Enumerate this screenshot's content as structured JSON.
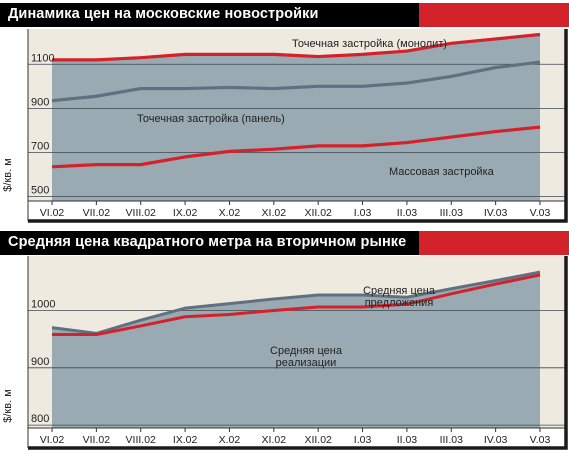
{
  "colors": {
    "header_bg": "#000000",
    "header_accent": "#d3222a",
    "plot_bg": "#efeadf",
    "area_fill": "#9aaab3",
    "gray_line": "#5f7180",
    "red_line": "#d3222a"
  },
  "charts": [
    {
      "title": "Динамика цен на московские новостройки",
      "ylabel": "$/кв. м",
      "xlabels": [
        "VI.02",
        "VII.02",
        "VIII.02",
        "IX.02",
        "X.02",
        "XI.02",
        "XII.02",
        "I.03",
        "II.03",
        "III.03",
        "IV.03",
        "V.03"
      ],
      "yticks": [
        "500",
        "700",
        "900",
        "1100"
      ],
      "annotations": [
        "Точечная застройка (монолит)",
        "Точечная застройка (панель)",
        "Массовая застройка"
      ]
    },
    {
      "title": "Средняя цена квадратного метра на вторичном рынке",
      "ylabel": "$/кв. м",
      "xlabels": [
        "VI.02",
        "VII.02",
        "VIII.02",
        "IX.02",
        "X.02",
        "XI.02",
        "XII.02",
        "I.03",
        "II.03",
        "III.03",
        "IV.03",
        "V.03"
      ],
      "yticks": [
        "800",
        "900",
        "1000"
      ],
      "annotations": [
        [
          "Средняя цена",
          "предложения"
        ],
        [
          "Средняя цена",
          "реализации"
        ]
      ]
    }
  ],
  "chart_data": [
    {
      "type": "area",
      "title": "Динамика цен на московские новостройки",
      "ylabel": "$/кв. м",
      "ylim": [
        480,
        1260
      ],
      "yticks": [
        500,
        700,
        900,
        1100
      ],
      "categories": [
        "VI.02",
        "VII.02",
        "VIII.02",
        "IX.02",
        "X.02",
        "XI.02",
        "XII.02",
        "I.03",
        "II.03",
        "III.03",
        "IV.03",
        "V.03"
      ],
      "grid": true,
      "series": [
        {
          "name": "Точечная застройка (монолит)",
          "color": "#d3222a",
          "values": [
            1120,
            1120,
            1130,
            1145,
            1145,
            1145,
            1135,
            1145,
            1160,
            1195,
            1215,
            1235
          ]
        },
        {
          "name": "Точечная застройка (панель)",
          "color": "#5f7180",
          "values": [
            935,
            955,
            990,
            990,
            995,
            990,
            1000,
            1000,
            1015,
            1045,
            1085,
            1110
          ]
        },
        {
          "name": "Массовая застройка",
          "color": "#d3222a",
          "values": [
            635,
            645,
            645,
            680,
            705,
            715,
            730,
            730,
            745,
            770,
            795,
            815
          ]
        }
      ]
    },
    {
      "type": "area",
      "title": "Средняя цена квадратного метра на вторичном рынке",
      "ylabel": "$/кв. м",
      "ylim": [
        795,
        1095
      ],
      "yticks": [
        800,
        900,
        1000
      ],
      "categories": [
        "VI.02",
        "VII.02",
        "VIII.02",
        "IX.02",
        "X.02",
        "XI.02",
        "XII.02",
        "I.03",
        "II.03",
        "III.03",
        "IV.03",
        "V.03"
      ],
      "grid": true,
      "series": [
        {
          "name": "Средняя цена предложения",
          "color": "#5f7180",
          "values": [
            970,
            960,
            983,
            1004,
            1012,
            1020,
            1027,
            1027,
            1023,
            1038,
            1052,
            1067
          ]
        },
        {
          "name": "Средняя цена реализации",
          "color": "#d3222a",
          "values": [
            958,
            958,
            973,
            989,
            993,
            1000,
            1006,
            1006,
            1011,
            1029,
            1046,
            1062
          ]
        }
      ]
    }
  ]
}
